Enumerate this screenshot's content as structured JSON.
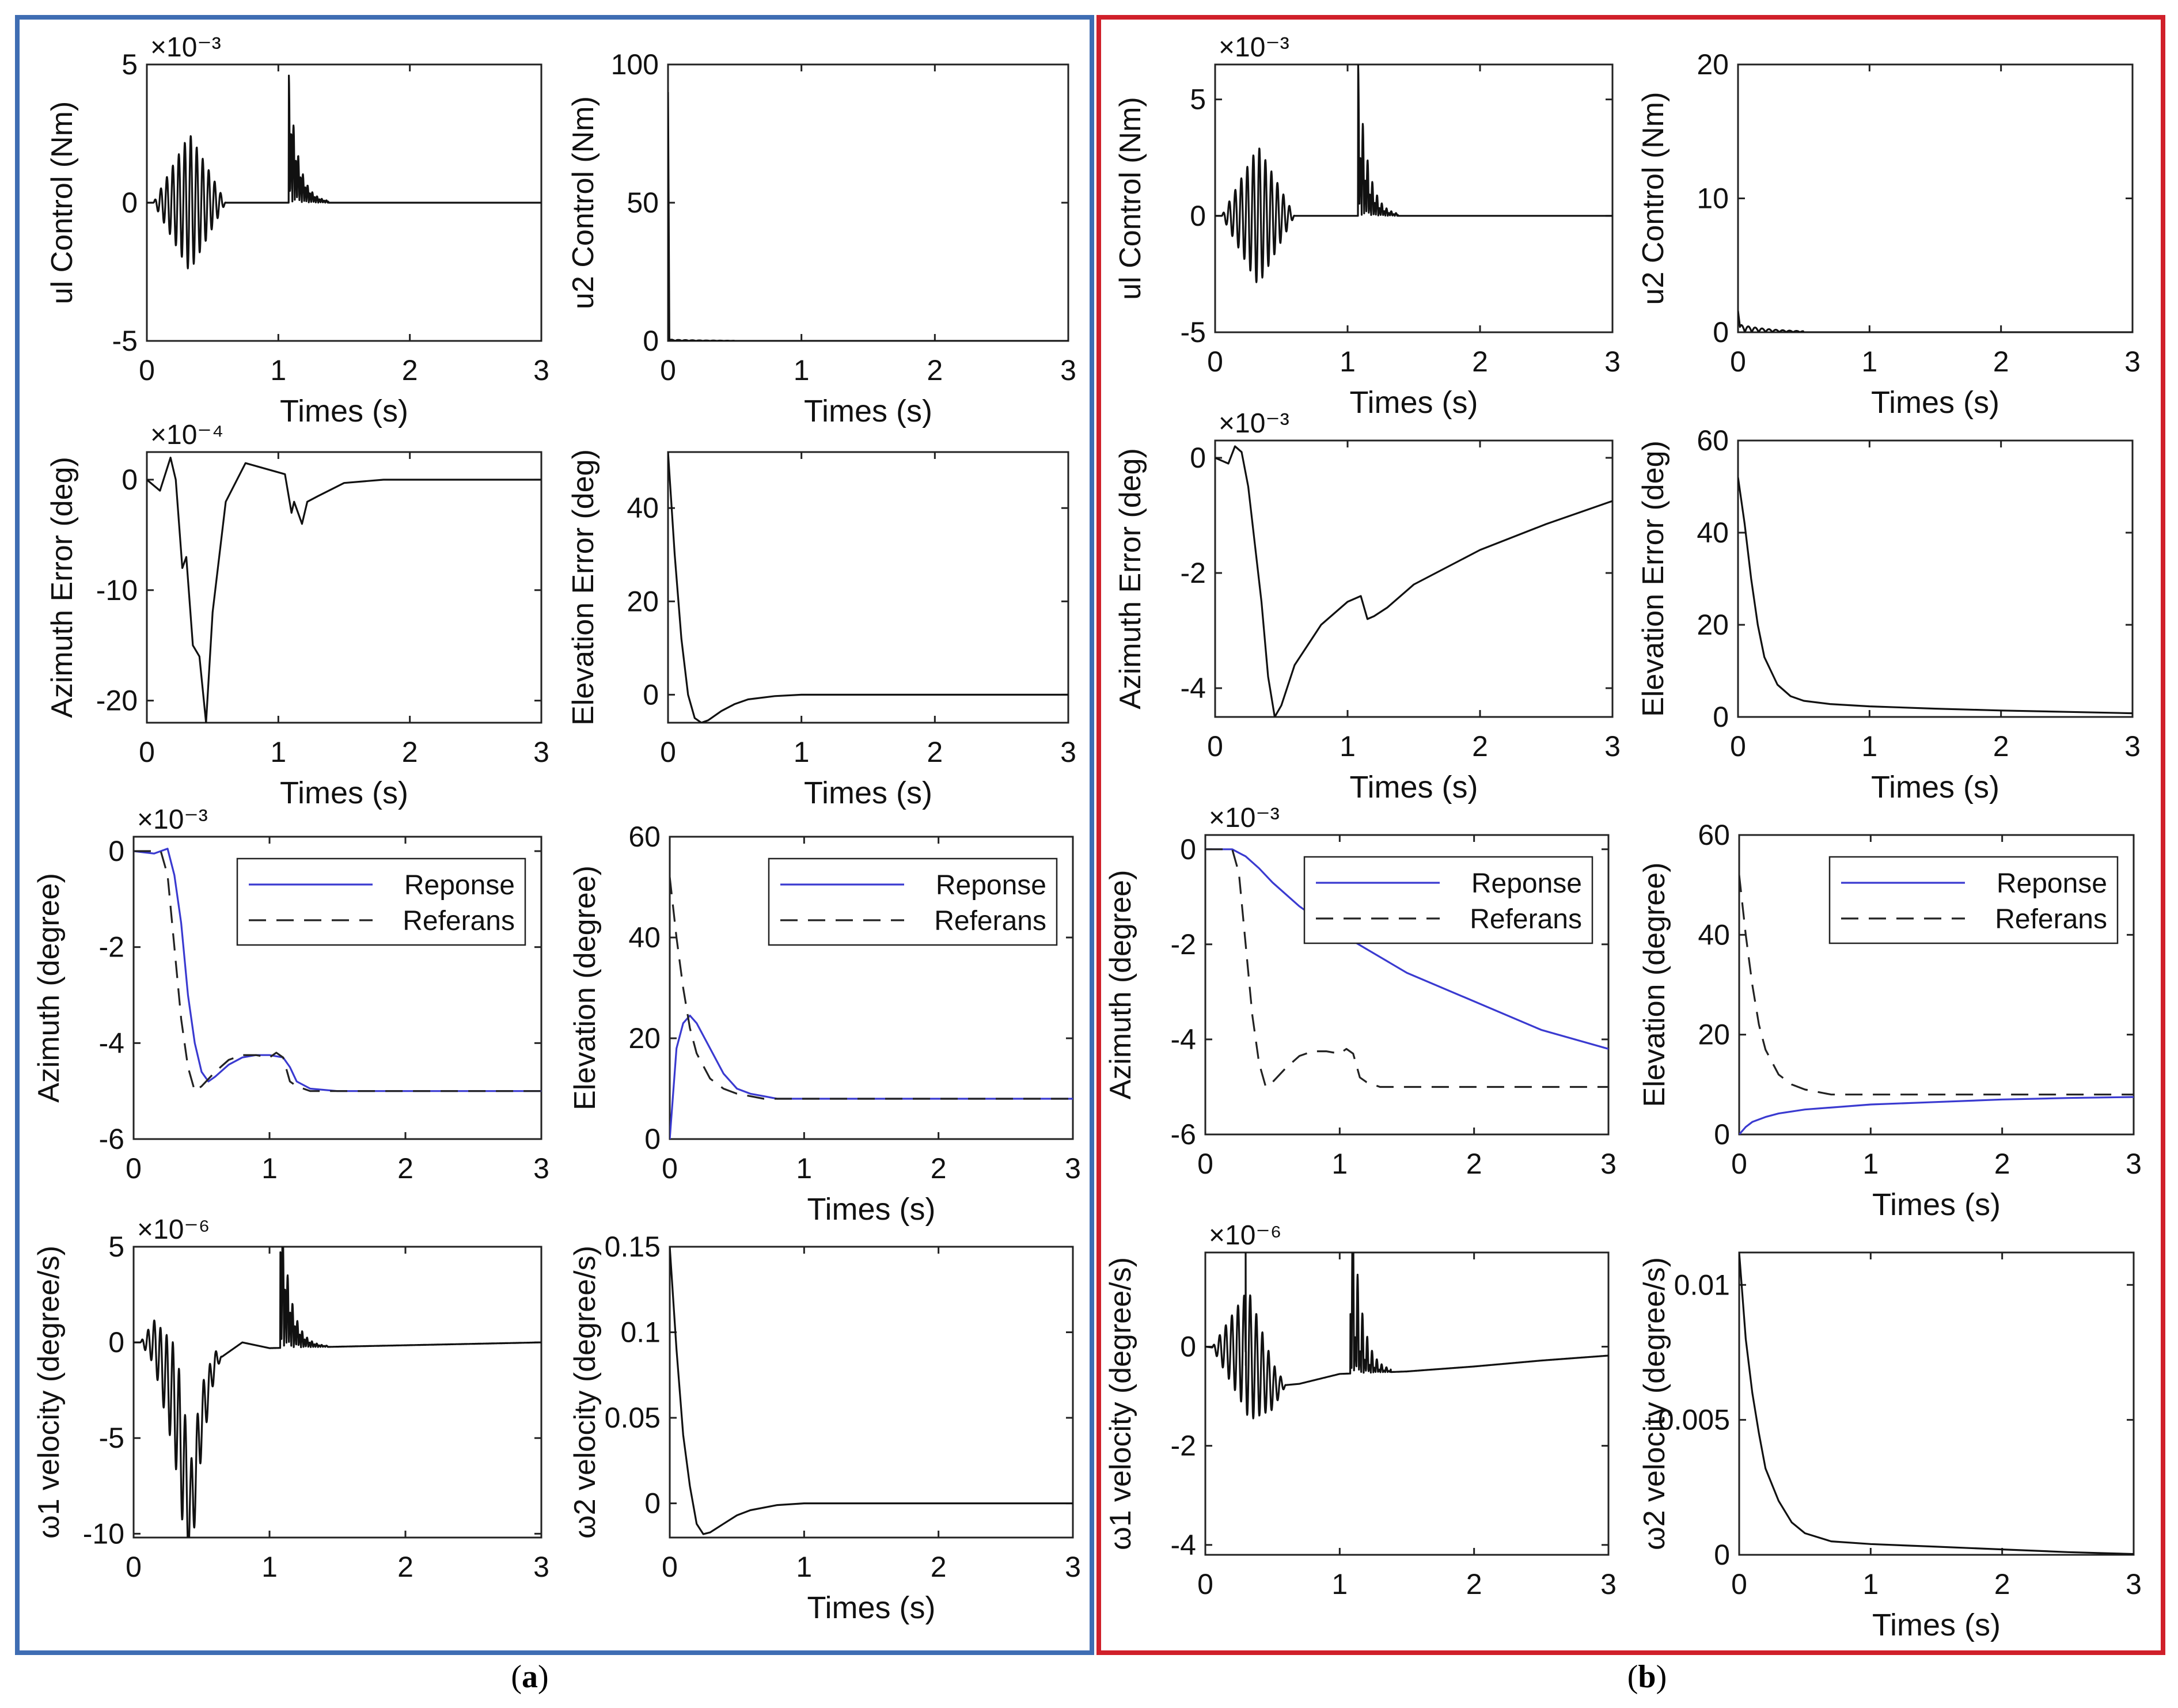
{
  "figure": {
    "caption_a": "a",
    "caption_b": "b",
    "frame_color_a": "#3f6db3",
    "frame_color_b": "#d0202a",
    "response_color": "#3a3ad0",
    "reference_color": "#222222"
  },
  "chart_data": [
    {
      "id": "a-u1",
      "panel": "a",
      "type": "line",
      "xlabel": "Times (s)",
      "ylabel": "ul Control (Nm)",
      "exponent": "×10⁻³",
      "xlim": [
        0,
        3
      ],
      "ylim": [
        -5,
        5
      ],
      "xticks": [
        0,
        1,
        2,
        3
      ],
      "yticks": [
        -5,
        0,
        5
      ],
      "series": [
        {
          "name": "u1",
          "signal": "burst2",
          "params": [
            0.05,
            0.6,
            2.5,
            1.08,
            4.6,
            -3.2,
            0.3
          ]
        }
      ]
    },
    {
      "id": "a-u2",
      "panel": "a",
      "type": "line",
      "xlabel": "Times (s)",
      "ylabel": "u2 Control (Nm)",
      "exponent": "",
      "xlim": [
        0,
        3
      ],
      "ylim": [
        0,
        100
      ],
      "xticks": [
        0,
        1,
        2,
        3
      ],
      "yticks": [
        0,
        50,
        100
      ],
      "series": [
        {
          "name": "u2",
          "signal": "spike",
          "params": [
            90,
            0.01,
            0.5
          ]
        }
      ]
    },
    {
      "id": "a-az-err",
      "panel": "a",
      "type": "line",
      "xlabel": "Times (s)",
      "ylabel": "Azimuth Error (deg)",
      "exponent": "×10⁻⁴",
      "xlim": [
        0,
        3
      ],
      "ylim": [
        -22,
        2.5
      ],
      "xticks": [
        0,
        1,
        2,
        3
      ],
      "yticks": [
        -20,
        -10,
        0
      ],
      "series": [
        {
          "name": "az_err",
          "signal": "points",
          "x": [
            0,
            0.1,
            0.18,
            0.22,
            0.27,
            0.3,
            0.35,
            0.4,
            0.45,
            0.5,
            0.6,
            0.75,
            0.9,
            1.05,
            1.1,
            1.12,
            1.18,
            1.22,
            1.3,
            1.5,
            1.8,
            2.2,
            3
          ],
          "y": [
            0,
            -1,
            2,
            0,
            -8,
            -7,
            -15,
            -16,
            -22,
            -12,
            -2,
            1.5,
            1,
            0.5,
            -3,
            -2,
            -4,
            -2,
            -1.5,
            -0.3,
            0,
            0,
            0
          ]
        }
      ]
    },
    {
      "id": "a-el-err",
      "panel": "a",
      "type": "line",
      "xlabel": "Times (s)",
      "ylabel": "Elevation Error (deg)",
      "exponent": "",
      "xlim": [
        0,
        3
      ],
      "ylim": [
        -6,
        52
      ],
      "xticks": [
        0,
        1,
        2,
        3
      ],
      "yticks": [
        0,
        20,
        40
      ],
      "series": [
        {
          "name": "el_err",
          "signal": "points",
          "x": [
            0,
            0.05,
            0.1,
            0.15,
            0.2,
            0.25,
            0.3,
            0.4,
            0.5,
            0.6,
            0.8,
            1,
            1.5,
            3
          ],
          "y": [
            52,
            30,
            12,
            0,
            -5,
            -6,
            -5.5,
            -3.5,
            -2,
            -1,
            -0.3,
            0,
            0,
            0
          ]
        }
      ]
    },
    {
      "id": "a-az",
      "panel": "a",
      "type": "line",
      "xlabel": "",
      "ylabel": "Azimuth (degree)",
      "exponent": "×10⁻³",
      "xlim": [
        0,
        3
      ],
      "ylim": [
        -6,
        0.3
      ],
      "xticks": [
        0,
        1,
        2,
        3
      ],
      "yticks": [
        -6,
        -4,
        -2,
        0
      ],
      "legend": "top-right",
      "series": [
        {
          "name": "Reponse",
          "style": "solid",
          "signal": "points",
          "x": [
            0,
            0.15,
            0.25,
            0.3,
            0.35,
            0.4,
            0.45,
            0.5,
            0.55,
            0.6,
            0.7,
            0.8,
            0.9,
            1.0,
            1.1,
            1.15,
            1.2,
            1.3,
            1.5,
            2,
            3
          ],
          "y": [
            0,
            -0.05,
            0.05,
            -0.5,
            -1.5,
            -3,
            -4,
            -4.6,
            -4.8,
            -4.7,
            -4.45,
            -4.3,
            -4.25,
            -4.25,
            -4.3,
            -4.5,
            -4.8,
            -4.95,
            -5,
            -5,
            -5
          ]
        },
        {
          "name": "Referans",
          "style": "dashed",
          "signal": "points",
          "x": [
            0,
            0.2,
            0.25,
            0.3,
            0.35,
            0.4,
            0.45,
            0.5,
            0.6,
            0.7,
            0.8,
            0.9,
            1.0,
            1.05,
            1.1,
            1.15,
            1.2,
            1.3,
            3
          ],
          "y": [
            0,
            0,
            -0.5,
            -2,
            -3.5,
            -4.5,
            -5,
            -4.9,
            -4.6,
            -4.35,
            -4.25,
            -4.25,
            -4.3,
            -4.2,
            -4.3,
            -4.8,
            -4.9,
            -5,
            -5
          ]
        }
      ]
    },
    {
      "id": "a-el",
      "panel": "a",
      "type": "line",
      "xlabel": "Times (s)",
      "ylabel": "Elevation (degree)",
      "exponent": "",
      "xlim": [
        0,
        3
      ],
      "ylim": [
        0,
        60
      ],
      "xticks": [
        0,
        1,
        2,
        3
      ],
      "yticks": [
        0,
        20,
        40,
        60
      ],
      "legend": "top-right",
      "series": [
        {
          "name": "Reponse",
          "style": "solid",
          "signal": "points",
          "x": [
            0,
            0.05,
            0.1,
            0.15,
            0.2,
            0.3,
            0.4,
            0.5,
            0.6,
            0.7,
            0.8,
            1.0,
            1.5,
            3
          ],
          "y": [
            0,
            18,
            23,
            24.5,
            23,
            18,
            13,
            10,
            9,
            8.5,
            8,
            8,
            8,
            8
          ]
        },
        {
          "name": "Referans",
          "style": "dashed",
          "signal": "points",
          "x": [
            0,
            0.05,
            0.1,
            0.15,
            0.2,
            0.3,
            0.4,
            0.5,
            0.6,
            0.7,
            1.0,
            3
          ],
          "y": [
            52,
            40,
            30,
            22,
            17,
            12,
            10,
            9,
            8.5,
            8,
            8,
            8
          ]
        }
      ]
    },
    {
      "id": "a-w1",
      "panel": "a",
      "type": "line",
      "xlabel": "",
      "ylabel": "ω1 velocity (degree/s)",
      "exponent": "×10⁻⁶",
      "xlim": [
        0,
        3
      ],
      "ylim": [
        -10.2,
        5
      ],
      "xticks": [
        0,
        1,
        2,
        3
      ],
      "yticks": [
        -10,
        -5,
        0,
        5
      ],
      "series": [
        {
          "name": "w1",
          "signal": "burst2",
          "params": [
            0.05,
            0.65,
            3.5,
            1.08,
            5,
            -8,
            0.35
          ],
          "base": [
            [
              0,
              0
            ],
            [
              0.15,
              0
            ],
            [
              0.3,
              -3
            ],
            [
              0.42,
              -9
            ],
            [
              0.5,
              -4
            ],
            [
              0.6,
              -1
            ],
            [
              0.8,
              0
            ],
            [
              1.0,
              -0.3
            ],
            [
              3,
              0
            ]
          ]
        }
      ]
    },
    {
      "id": "a-w2",
      "panel": "a",
      "type": "line",
      "xlabel": "Times (s)",
      "ylabel": "ω2 velocity (degree/s)",
      "exponent": "",
      "xlim": [
        0,
        3
      ],
      "ylim": [
        -0.02,
        0.15
      ],
      "xticks": [
        0,
        1,
        2,
        3
      ],
      "yticks": [
        0,
        0.05,
        0.1,
        0.15
      ],
      "series": [
        {
          "name": "w2",
          "signal": "points",
          "x": [
            0,
            0.05,
            0.1,
            0.15,
            0.2,
            0.25,
            0.3,
            0.4,
            0.5,
            0.6,
            0.8,
            1.0,
            1.5,
            3
          ],
          "y": [
            0.15,
            0.09,
            0.04,
            0.01,
            -0.012,
            -0.018,
            -0.017,
            -0.012,
            -0.007,
            -0.004,
            -0.001,
            0,
            0,
            0
          ]
        }
      ]
    },
    {
      "id": "b-u1",
      "panel": "b",
      "type": "line",
      "xlabel": "Times (s)",
      "ylabel": "ul Control (Nm)",
      "exponent": "×10⁻³",
      "xlim": [
        0,
        3
      ],
      "ylim": [
        -5,
        6.5
      ],
      "xticks": [
        0,
        1,
        2,
        3
      ],
      "yticks": [
        -5,
        0,
        5
      ],
      "series": [
        {
          "name": "u1",
          "signal": "burst2",
          "params": [
            0.05,
            0.6,
            3.0,
            1.08,
            6.5,
            -3.2,
            0.3
          ]
        }
      ]
    },
    {
      "id": "b-u2",
      "panel": "b",
      "type": "line",
      "xlabel": "Times (s)",
      "ylabel": "u2 Control (Nm)",
      "exponent": "",
      "xlim": [
        0,
        3
      ],
      "ylim": [
        0,
        20
      ],
      "xticks": [
        0,
        1,
        2,
        3
      ],
      "yticks": [
        0,
        10,
        20
      ],
      "series": [
        {
          "name": "u2",
          "signal": "spike",
          "params": [
            1.6,
            0.02,
            0.6
          ]
        }
      ]
    },
    {
      "id": "b-az-err",
      "panel": "b",
      "type": "line",
      "xlabel": "Times (s)",
      "ylabel": "Azimuth Error (deg)",
      "exponent": "×10⁻³",
      "xlim": [
        0,
        3
      ],
      "ylim": [
        -4.5,
        0.3
      ],
      "xticks": [
        0,
        1,
        2,
        3
      ],
      "yticks": [
        -4,
        -2,
        0
      ],
      "series": [
        {
          "name": "az_err",
          "signal": "points",
          "x": [
            0,
            0.1,
            0.15,
            0.2,
            0.25,
            0.3,
            0.35,
            0.4,
            0.45,
            0.5,
            0.6,
            0.8,
            1.0,
            1.1,
            1.15,
            1.2,
            1.3,
            1.5,
            2,
            2.5,
            3
          ],
          "y": [
            0,
            -0.1,
            0.2,
            0.1,
            -0.5,
            -1.5,
            -2.5,
            -3.8,
            -4.5,
            -4.3,
            -3.6,
            -2.9,
            -2.5,
            -2.4,
            -2.8,
            -2.75,
            -2.6,
            -2.2,
            -1.6,
            -1.15,
            -0.75
          ]
        }
      ]
    },
    {
      "id": "b-el-err",
      "panel": "b",
      "type": "line",
      "xlabel": "Times (s)",
      "ylabel": "Elevation Error (deg)",
      "exponent": "",
      "xlim": [
        0,
        3
      ],
      "ylim": [
        0,
        60
      ],
      "xticks": [
        0,
        1,
        2,
        3
      ],
      "yticks": [
        0,
        20,
        40,
        60
      ],
      "series": [
        {
          "name": "el_err",
          "signal": "points",
          "x": [
            0,
            0.05,
            0.1,
            0.15,
            0.2,
            0.3,
            0.4,
            0.5,
            0.7,
            1.0,
            1.5,
            2,
            2.5,
            3
          ],
          "y": [
            52,
            42,
            30,
            20,
            13,
            7,
            4.5,
            3.5,
            2.8,
            2.3,
            1.8,
            1.4,
            1.1,
            0.8
          ]
        }
      ]
    },
    {
      "id": "b-az",
      "panel": "b",
      "type": "line",
      "xlabel": "",
      "ylabel": "Azimuth (degree)",
      "exponent": "×10⁻³",
      "xlim": [
        0,
        3
      ],
      "ylim": [
        -6,
        0.3
      ],
      "xticks": [
        0,
        1,
        2,
        3
      ],
      "yticks": [
        -6,
        -4,
        -2,
        0
      ],
      "legend": "top-right",
      "series": [
        {
          "name": "Reponse",
          "style": "solid",
          "signal": "points",
          "x": [
            0,
            0.2,
            0.3,
            0.4,
            0.5,
            0.7,
            0.9,
            1.2,
            1.5,
            2,
            2.5,
            3
          ],
          "y": [
            0,
            0,
            -0.15,
            -0.4,
            -0.7,
            -1.2,
            -1.6,
            -2.1,
            -2.6,
            -3.2,
            -3.8,
            -4.2
          ]
        },
        {
          "name": "Referans",
          "style": "dashed",
          "signal": "points",
          "x": [
            0,
            0.2,
            0.25,
            0.3,
            0.35,
            0.4,
            0.45,
            0.5,
            0.6,
            0.7,
            0.8,
            0.9,
            1.0,
            1.05,
            1.1,
            1.15,
            1.2,
            1.3,
            3
          ],
          "y": [
            0,
            0,
            -0.5,
            -2,
            -3.5,
            -4.5,
            -5,
            -4.9,
            -4.6,
            -4.35,
            -4.25,
            -4.25,
            -4.3,
            -4.2,
            -4.3,
            -4.8,
            -4.9,
            -5,
            -5
          ]
        }
      ]
    },
    {
      "id": "b-el",
      "panel": "b",
      "type": "line",
      "xlabel": "Times (s)",
      "ylabel": "Elevation (degree)",
      "exponent": "",
      "xlim": [
        0,
        3
      ],
      "ylim": [
        0,
        60
      ],
      "xticks": [
        0,
        1,
        2,
        3
      ],
      "yticks": [
        0,
        20,
        40,
        60
      ],
      "legend": "top-right",
      "series": [
        {
          "name": "Reponse",
          "style": "solid",
          "signal": "points",
          "x": [
            0,
            0.05,
            0.1,
            0.2,
            0.3,
            0.5,
            0.8,
            1.0,
            1.5,
            2,
            2.5,
            3
          ],
          "y": [
            0,
            1.5,
            2.5,
            3.5,
            4.2,
            5,
            5.6,
            6,
            6.5,
            7,
            7.3,
            7.5
          ]
        },
        {
          "name": "Referans",
          "style": "dashed",
          "signal": "points",
          "x": [
            0,
            0.05,
            0.1,
            0.15,
            0.2,
            0.3,
            0.4,
            0.5,
            0.6,
            0.7,
            1.0,
            3
          ],
          "y": [
            52,
            40,
            30,
            22,
            17,
            12,
            10,
            9,
            8.5,
            8,
            8,
            8
          ]
        }
      ]
    },
    {
      "id": "b-w1",
      "panel": "b",
      "type": "line",
      "xlabel": "",
      "ylabel": "ω1 velocity (degree/s)",
      "exponent": "×10⁻⁶",
      "xlim": [
        0,
        3
      ],
      "ylim": [
        -4.2,
        1.9
      ],
      "xticks": [
        0,
        1,
        2,
        3
      ],
      "yticks": [
        -4,
        -2,
        0
      ],
      "series": [
        {
          "name": "w1",
          "signal": "burst2",
          "params": [
            0.05,
            0.6,
            1.3,
            1.08,
            1.2,
            -4.2,
            0.3
          ],
          "base": [
            [
              0,
              0
            ],
            [
              0.3,
              -0.1
            ],
            [
              0.5,
              -0.8
            ],
            [
              0.7,
              -0.75
            ],
            [
              1.0,
              -0.55
            ],
            [
              1.5,
              -0.5
            ],
            [
              2,
              -0.4
            ],
            [
              2.5,
              -0.28
            ],
            [
              3,
              -0.18
            ]
          ],
          "extra_spike": [
            0.3,
            1.9
          ]
        }
      ]
    },
    {
      "id": "b-w2",
      "panel": "b",
      "type": "line",
      "xlabel": "Times (s)",
      "ylabel": "ω2 velocity (degree/s)",
      "exponent": "",
      "xlim": [
        0,
        3
      ],
      "ylim": [
        0,
        0.0112
      ],
      "xticks": [
        0,
        1,
        2,
        3
      ],
      "yticks": [
        0,
        0.005,
        0.01
      ],
      "series": [
        {
          "name": "w2",
          "signal": "points",
          "x": [
            0,
            0.05,
            0.1,
            0.15,
            0.2,
            0.3,
            0.4,
            0.5,
            0.7,
            1.0,
            1.5,
            2,
            2.5,
            3
          ],
          "y": [
            0.0112,
            0.008,
            0.006,
            0.0045,
            0.0032,
            0.002,
            0.0012,
            0.0008,
            0.0005,
            0.0004,
            0.0003,
            0.0002,
            0.0001,
            3e-05
          ]
        }
      ]
    }
  ]
}
